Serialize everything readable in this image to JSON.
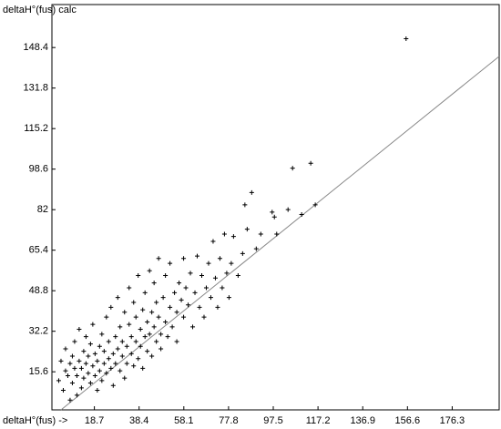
{
  "chart_data": {
    "type": "scatter",
    "y_label": "deltaH°(fus) calc",
    "x_label": "deltaH°(fus) ->",
    "color": "#000000",
    "line_color": "#888888",
    "xlim": [
      0,
      197
    ],
    "ylim": [
      0,
      166
    ],
    "xticks": [
      18.7,
      38.4,
      58.1,
      77.8,
      97.5,
      117.2,
      136.9,
      156.6,
      176.3
    ],
    "yticks": [
      15.6,
      32.2,
      48.8,
      65.4,
      82.0,
      98.6,
      115.2,
      131.8,
      148.4
    ],
    "fit_line": {
      "x": [
        4,
        197
      ],
      "y": [
        0,
        144.8
      ]
    },
    "x": [
      3,
      4,
      5,
      6,
      6,
      7,
      8,
      8,
      9,
      9,
      10,
      10,
      11,
      11,
      12,
      12,
      13,
      13,
      14,
      14,
      15,
      15,
      16,
      16,
      17,
      17,
      18,
      18,
      19,
      19,
      20,
      20,
      21,
      21,
      22,
      22,
      23,
      23,
      24,
      24,
      25,
      25,
      26,
      26,
      27,
      27,
      28,
      28,
      29,
      29,
      30,
      30,
      31,
      31,
      32,
      32,
      33,
      33,
      34,
      34,
      35,
      35,
      36,
      36,
      37,
      37,
      38,
      38,
      39,
      39,
      40,
      40,
      41,
      41,
      42,
      42,
      43,
      43,
      44,
      44,
      45,
      45,
      46,
      46,
      47,
      47,
      48,
      48,
      49,
      50,
      50,
      51,
      52,
      52,
      53,
      54,
      55,
      55,
      56,
      57,
      58,
      58,
      59,
      60,
      61,
      62,
      63,
      64,
      65,
      66,
      67,
      68,
      69,
      70,
      71,
      72,
      73,
      74,
      75,
      76,
      77,
      78,
      79,
      80,
      82,
      84,
      85,
      86,
      88,
      90,
      92,
      97,
      98,
      99,
      104,
      106,
      110,
      114,
      116,
      156
    ],
    "values": [
      12,
      20,
      8,
      16,
      25,
      14,
      19,
      4,
      22,
      11,
      17,
      28,
      14,
      6,
      20,
      33,
      17,
      9,
      24,
      13,
      19,
      30,
      15,
      22,
      11,
      27,
      18,
      35,
      14,
      23,
      20,
      8,
      26,
      16,
      31,
      12,
      19,
      24,
      38,
      15,
      21,
      28,
      17,
      42,
      23,
      10,
      30,
      19,
      25,
      46,
      16,
      34,
      22,
      28,
      40,
      13,
      26,
      19,
      35,
      50,
      23,
      30,
      18,
      44,
      28,
      38,
      21,
      55,
      33,
      26,
      41,
      17,
      30,
      48,
      24,
      36,
      57,
      31,
      40,
      22,
      34,
      52,
      28,
      44,
      38,
      62,
      31,
      25,
      46,
      36,
      55,
      30,
      42,
      60,
      34,
      48,
      40,
      28,
      52,
      45,
      38,
      62,
      50,
      43,
      56,
      34,
      48,
      63,
      42,
      55,
      38,
      50,
      60,
      46,
      69,
      54,
      42,
      62,
      50,
      72,
      56,
      46,
      60,
      71,
      55,
      64,
      84,
      74,
      89,
      66,
      72,
      81,
      79,
      72,
      82,
      99,
      80,
      101,
      84,
      152
    ]
  }
}
